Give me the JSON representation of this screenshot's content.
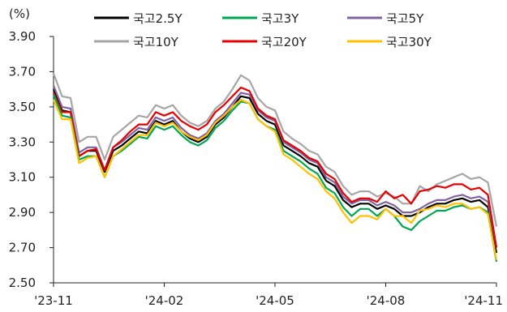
{
  "chart_data": {
    "type": "line",
    "title": "",
    "xlabel": "",
    "ylabel": "(%)",
    "ylim": [
      2.5,
      3.9
    ],
    "yticks": [
      "3.90",
      "3.70",
      "3.50",
      "3.30",
      "3.10",
      "2.90",
      "2.70",
      "2.50"
    ],
    "yticks_values": [
      3.9,
      3.7,
      3.5,
      3.3,
      3.1,
      2.9,
      2.7,
      2.5
    ],
    "xticks": [
      "'23-11",
      "'24-02",
      "'24-05",
      "'24-08",
      "'24-11"
    ],
    "xticks_index": [
      0,
      13,
      26,
      39,
      52
    ],
    "grid": false,
    "legend_position": "top",
    "x": [
      "'23-11",
      "",
      "",
      "",
      "",
      "",
      "",
      "",
      "",
      "",
      "",
      "",
      "",
      "'24-02",
      "",
      "",
      "",
      "",
      "",
      "",
      "",
      "",
      "",
      "",
      "",
      "",
      "'24-05",
      "",
      "",
      "",
      "",
      "",
      "",
      "",
      "",
      "",
      "",
      "",
      "",
      "'24-08",
      "",
      "",
      "",
      "",
      "",
      "",
      "",
      "",
      "",
      "",
      "",
      "",
      "'24-11"
    ],
    "series": [
      {
        "name": "국고2.5Y",
        "color": "#000000",
        "values": [
          3.6,
          3.48,
          3.47,
          3.22,
          3.25,
          3.25,
          3.13,
          3.25,
          3.28,
          3.32,
          3.36,
          3.35,
          3.42,
          3.4,
          3.42,
          3.36,
          3.32,
          3.3,
          3.33,
          3.4,
          3.44,
          3.5,
          3.56,
          3.55,
          3.46,
          3.42,
          3.4,
          3.28,
          3.25,
          3.22,
          3.18,
          3.16,
          3.08,
          3.05,
          2.97,
          2.93,
          2.95,
          2.95,
          2.92,
          2.94,
          2.92,
          2.88,
          2.88,
          2.9,
          2.93,
          2.95,
          2.95,
          2.97,
          2.98,
          2.96,
          2.97,
          2.93,
          2.67
        ]
      },
      {
        "name": "국고3Y",
        "color": "#00a651",
        "values": [
          3.57,
          3.45,
          3.44,
          3.2,
          3.22,
          3.22,
          3.1,
          3.22,
          3.25,
          3.29,
          3.33,
          3.32,
          3.39,
          3.37,
          3.39,
          3.34,
          3.3,
          3.28,
          3.31,
          3.38,
          3.42,
          3.48,
          3.53,
          3.52,
          3.43,
          3.39,
          3.37,
          3.25,
          3.22,
          3.19,
          3.15,
          3.12,
          3.04,
          3.01,
          2.93,
          2.88,
          2.92,
          2.92,
          2.88,
          2.92,
          2.88,
          2.82,
          2.8,
          2.85,
          2.88,
          2.91,
          2.91,
          2.93,
          2.94,
          2.92,
          2.93,
          2.9,
          2.62
        ]
      },
      {
        "name": "국고5Y",
        "color": "#8064a2",
        "values": [
          3.62,
          3.5,
          3.49,
          3.24,
          3.27,
          3.27,
          3.14,
          3.27,
          3.3,
          3.34,
          3.38,
          3.37,
          3.44,
          3.42,
          3.44,
          3.38,
          3.34,
          3.32,
          3.35,
          3.42,
          3.46,
          3.52,
          3.58,
          3.57,
          3.48,
          3.44,
          3.42,
          3.3,
          3.27,
          3.24,
          3.2,
          3.18,
          3.1,
          3.07,
          2.99,
          2.95,
          2.97,
          2.97,
          2.94,
          2.96,
          2.94,
          2.9,
          2.9,
          2.92,
          2.95,
          2.97,
          2.97,
          2.99,
          3.0,
          2.98,
          2.99,
          2.96,
          2.7
        ]
      },
      {
        "name": "국고10Y",
        "color": "#a6a6a6",
        "values": [
          3.69,
          3.56,
          3.55,
          3.3,
          3.33,
          3.33,
          3.2,
          3.33,
          3.37,
          3.41,
          3.45,
          3.44,
          3.51,
          3.49,
          3.51,
          3.45,
          3.41,
          3.39,
          3.42,
          3.49,
          3.53,
          3.6,
          3.68,
          3.65,
          3.55,
          3.5,
          3.48,
          3.36,
          3.32,
          3.29,
          3.25,
          3.23,
          3.16,
          3.13,
          3.05,
          3.0,
          3.02,
          3.02,
          2.99,
          3.01,
          2.99,
          2.95,
          2.95,
          3.05,
          3.02,
          3.06,
          3.08,
          3.1,
          3.12,
          3.09,
          3.1,
          3.07,
          2.82
        ]
      },
      {
        "name": "국고20Y",
        "color": "#e60000",
        "values": [
          3.58,
          3.47,
          3.47,
          3.22,
          3.25,
          3.26,
          3.14,
          3.27,
          3.31,
          3.36,
          3.4,
          3.4,
          3.47,
          3.45,
          3.47,
          3.42,
          3.39,
          3.37,
          3.4,
          3.47,
          3.51,
          3.56,
          3.61,
          3.59,
          3.49,
          3.45,
          3.43,
          3.31,
          3.28,
          3.25,
          3.21,
          3.19,
          3.12,
          3.09,
          3.01,
          2.96,
          2.98,
          2.98,
          2.96,
          3.02,
          2.98,
          3.0,
          2.95,
          3.02,
          3.03,
          3.05,
          3.04,
          3.06,
          3.06,
          3.03,
          3.04,
          3.0,
          2.7
        ]
      },
      {
        "name": "국고30Y",
        "color": "#ffc000",
        "values": [
          3.54,
          3.43,
          3.43,
          3.18,
          3.21,
          3.22,
          3.1,
          3.22,
          3.26,
          3.3,
          3.34,
          3.34,
          3.41,
          3.39,
          3.41,
          3.36,
          3.33,
          3.31,
          3.34,
          3.41,
          3.45,
          3.5,
          3.54,
          3.52,
          3.43,
          3.39,
          3.36,
          3.23,
          3.2,
          3.16,
          3.12,
          3.09,
          3.02,
          2.98,
          2.9,
          2.84,
          2.88,
          2.88,
          2.86,
          2.92,
          2.88,
          2.88,
          2.84,
          2.91,
          2.92,
          2.94,
          2.93,
          2.95,
          2.95,
          2.92,
          2.93,
          2.89,
          2.63
        ]
      }
    ]
  }
}
